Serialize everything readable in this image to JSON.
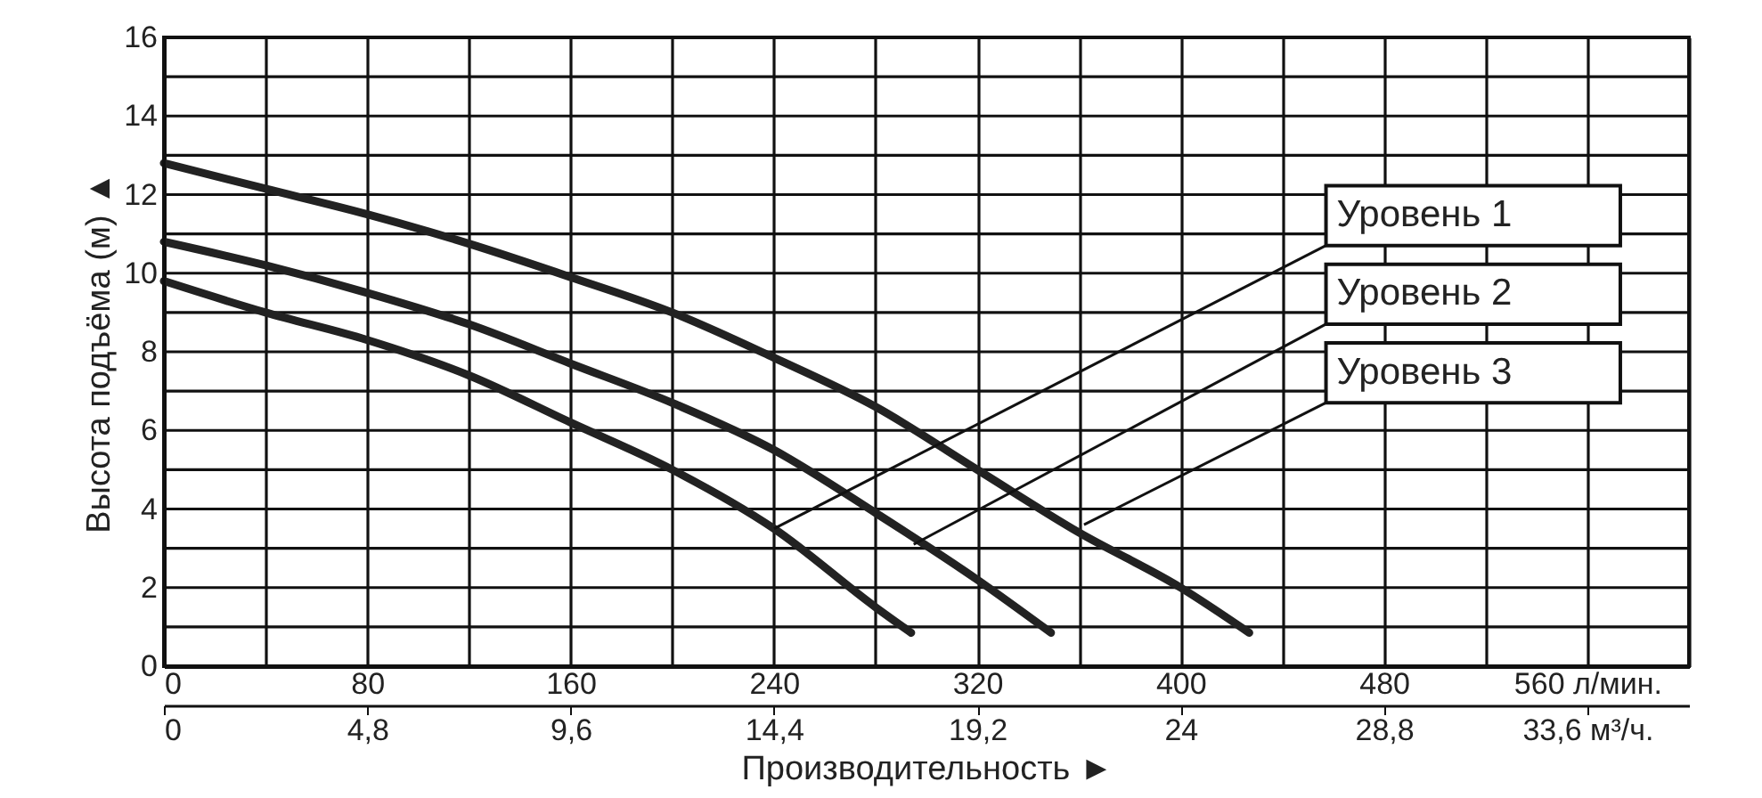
{
  "chart_data": {
    "type": "line",
    "ylabel": "Высота подъёма (м) ▲",
    "xlabel": "Производительность ►",
    "series": [
      {
        "color": "#222222",
        "x": [
          0,
          40,
          80,
          120,
          160,
          200,
          240,
          280,
          294
        ],
        "values": [
          9.8,
          9.0,
          8.3,
          7.4,
          6.2,
          5.0,
          3.5,
          1.5,
          0.85
        ]
      },
      {
        "color": "#222222",
        "x": [
          0,
          40,
          80,
          120,
          160,
          200,
          240,
          280,
          320,
          349
        ],
        "values": [
          10.8,
          10.2,
          9.5,
          8.7,
          7.7,
          6.7,
          5.5,
          3.9,
          2.2,
          0.85
        ]
      },
      {
        "color": "#222222",
        "x": [
          0,
          40,
          80,
          120,
          160,
          200,
          240,
          280,
          320,
          360,
          400,
          427
        ],
        "values": [
          12.8,
          12.15,
          11.5,
          10.75,
          9.9,
          9.0,
          7.85,
          6.6,
          5.0,
          3.4,
          2.0,
          0.85
        ]
      }
    ],
    "annotations": [
      {
        "text": "Уровень 1",
        "x": 240,
        "y": 3.5
      },
      {
        "text": "Уровень 2",
        "x": 295,
        "y": 3.1
      },
      {
        "text": "Уровень 3",
        "x": 362,
        "y": 3.6
      }
    ],
    "xlim": [
      0,
      600
    ],
    "ylim": [
      0,
      16
    ],
    "xticks": [
      0,
      {
        "value": 40,
        "label": null
      },
      80,
      {
        "value": 120,
        "label": null
      },
      160,
      {
        "value": 200,
        "label": null
      },
      240,
      {
        "value": 280,
        "label": null
      },
      320,
      {
        "value": 360,
        "label": null
      },
      400,
      {
        "value": 440,
        "label": null
      },
      480,
      {
        "value": 520,
        "label": null
      },
      {
        "value": 560,
        "label": "560 л/мин."
      },
      {
        "value": 600,
        "label": null
      }
    ],
    "yticks": [
      0,
      {
        "value": 1,
        "label": null
      },
      2,
      {
        "value": 3,
        "label": null
      },
      4,
      {
        "value": 5,
        "label": null
      },
      6,
      {
        "value": 7,
        "label": null
      },
      8,
      {
        "value": 9,
        "label": null
      },
      10,
      {
        "value": 11,
        "label": null
      },
      12,
      {
        "value": 13,
        "label": null
      },
      14,
      {
        "value": 15,
        "label": null
      },
      16
    ],
    "x2lim": [
      0,
      36
    ],
    "x2ticks": [
      0,
      {
        "value": 4.8,
        "label": "4,8"
      },
      {
        "value": 9.6,
        "label": "9,6"
      },
      {
        "value": 14.4,
        "label": "14,4"
      },
      {
        "value": 19.2,
        "label": "19,2"
      },
      24,
      {
        "value": 28.8,
        "label": "28,8"
      },
      {
        "value": 33.6,
        "label": "33,6 м³/ч."
      }
    ],
    "grid": true,
    "line_style": "solid",
    "marker": "none"
  }
}
